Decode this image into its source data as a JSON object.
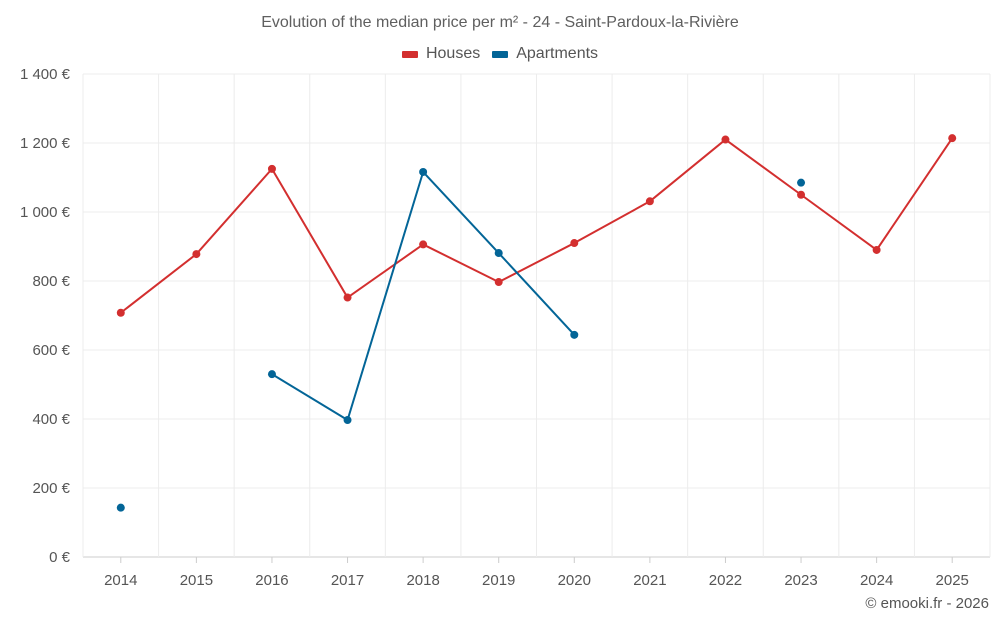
{
  "chart_data": {
    "type": "line",
    "title": "Evolution of the median price per m² - 24 - Saint-Pardoux-la-Rivière",
    "xlabel": "",
    "ylabel": "",
    "categories": [
      "2014",
      "2015",
      "2016",
      "2017",
      "2018",
      "2019",
      "2020",
      "2021",
      "2022",
      "2023",
      "2024",
      "2025"
    ],
    "ylim": [
      0,
      1400
    ],
    "yticks": [
      0,
      200,
      400,
      600,
      800,
      1000,
      1200,
      1400
    ],
    "ytick_labels": [
      "0 €",
      "200 €",
      "400 €",
      "600 €",
      "800 €",
      "1 000 €",
      "1 200 €",
      "1 400 €"
    ],
    "grid": true,
    "legend_position": "top-center",
    "series": [
      {
        "name": "Houses",
        "color": "#d32f2f",
        "values": [
          708,
          878,
          1125,
          752,
          906,
          797,
          910,
          1031,
          1210,
          1050,
          890,
          1214
        ]
      },
      {
        "name": "Apartments",
        "color": "#036597",
        "values": [
          143,
          null,
          530,
          397,
          1116,
          881,
          644,
          null,
          null,
          1085,
          null,
          null
        ]
      }
    ]
  },
  "credit": "© emooki.fr - 2026"
}
